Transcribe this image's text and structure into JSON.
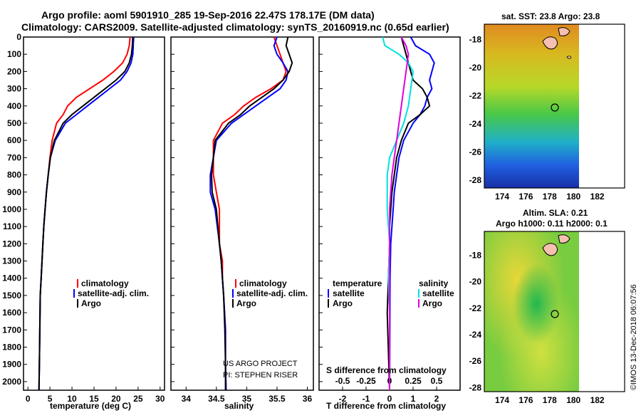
{
  "header": {
    "line1": "Argo profile: aoml 5901910_285 19-Sep-2016 22.47S 178.17E (DM data)",
    "line2": "Climatology: CARS2009. Satellite-adjusted climatology: synTS_20160919.nc (0.65d earlier)"
  },
  "credits": {
    "project": "US ARGO PROJECT",
    "pi": "PI: STEPHEN RISER"
  },
  "imos_stamp": "©IMOS 13-Dec-2018 06:07:56",
  "colors": {
    "climatology": "#ff0000",
    "satellite": "#0000ff",
    "argo": "#000000",
    "sat_salinity": "#00e0e0",
    "argo_salinity": "#e000e0"
  },
  "chart_data": [
    {
      "type": "line",
      "id": "temperature",
      "xlabel": "temperature (deg C)",
      "ylim": [
        2050,
        0
      ],
      "xlim": [
        -1,
        31
      ],
      "xticks": [
        "0",
        "5",
        "10",
        "15",
        "20",
        "25",
        "30"
      ],
      "yticks": [
        "0",
        "100",
        "200",
        "300",
        "400",
        "500",
        "600",
        "700",
        "800",
        "900",
        "1000",
        "1100",
        "1200",
        "1300",
        "1400",
        "1500",
        "1600",
        "1700",
        "1800",
        "1900",
        "2000"
      ],
      "legend": [
        "climatology",
        "satellite-adj. clim.",
        "Argo"
      ],
      "series": [
        {
          "name": "climatology",
          "color": "#ff0000",
          "x": [
            23.2,
            23.0,
            22.5,
            21.5,
            19.5,
            17.0,
            14.0,
            11.0,
            9.0,
            8.0,
            6.5,
            5.5,
            5.0,
            4.6,
            4.2,
            3.9,
            3.6,
            3.4,
            3.2,
            3.0,
            2.8,
            2.7,
            2.6,
            2.5
          ],
          "y": [
            0,
            50,
            100,
            150,
            200,
            250,
            300,
            350,
            400,
            450,
            500,
            600,
            700,
            800,
            900,
            1000,
            1100,
            1200,
            1300,
            1400,
            1500,
            1700,
            1900,
            2050
          ]
        },
        {
          "name": "satellite-adj. clim.",
          "color": "#0000ff",
          "x": [
            24.0,
            23.9,
            23.8,
            23.4,
            22.5,
            21.0,
            18.5,
            16.0,
            13.5,
            11.0,
            8.5,
            6.2,
            5.1,
            4.6,
            4.2,
            3.9,
            3.6,
            3.4,
            3.2,
            3.0,
            2.8,
            2.7,
            2.6,
            2.5
          ],
          "y": [
            0,
            50,
            100,
            150,
            200,
            250,
            300,
            350,
            400,
            450,
            500,
            600,
            700,
            800,
            900,
            1000,
            1100,
            1200,
            1300,
            1400,
            1500,
            1700,
            1900,
            2050
          ]
        },
        {
          "name": "Argo",
          "color": "#000000",
          "x": [
            23.8,
            23.7,
            23.5,
            23.0,
            22.0,
            20.0,
            17.5,
            15.0,
            12.5,
            10.0,
            8.0,
            6.0,
            5.1,
            4.6,
            4.2,
            3.9,
            3.6,
            3.4,
            3.2,
            3.0,
            2.8,
            2.7,
            2.6,
            2.5
          ],
          "y": [
            0,
            50,
            100,
            150,
            200,
            250,
            300,
            350,
            400,
            450,
            500,
            600,
            700,
            800,
            900,
            1000,
            1100,
            1200,
            1300,
            1400,
            1500,
            1700,
            1900,
            2050
          ]
        }
      ]
    },
    {
      "type": "line",
      "id": "salinity",
      "xlabel": "salinity",
      "ylim": [
        2050,
        0
      ],
      "xlim": [
        33.75,
        36.1
      ],
      "xticks": [
        "34",
        "34.5",
        "35",
        "35.5",
        "36"
      ],
      "legend": [
        "climatology",
        "satellite-adj. clim.",
        "Argo"
      ],
      "series": [
        {
          "name": "climatology",
          "color": "#ff0000",
          "x": [
            35.45,
            35.5,
            35.55,
            35.6,
            35.65,
            35.6,
            35.4,
            35.15,
            34.95,
            34.8,
            34.6,
            34.45,
            34.45,
            34.5,
            34.55,
            34.55,
            34.6,
            34.6,
            34.62,
            34.65,
            34.65,
            34.66
          ],
          "y": [
            0,
            50,
            100,
            150,
            200,
            250,
            300,
            350,
            400,
            450,
            500,
            600,
            800,
            900,
            1000,
            1200,
            1300,
            1400,
            1500,
            1700,
            1900,
            2050
          ]
        },
        {
          "name": "satellite-adj. clim.",
          "color": "#0000ff",
          "x": [
            35.5,
            35.45,
            35.5,
            35.6,
            35.68,
            35.65,
            35.55,
            35.35,
            35.15,
            34.95,
            34.75,
            34.5,
            34.4,
            34.4,
            34.48,
            34.55,
            34.58,
            34.6,
            34.62,
            34.65,
            34.65,
            34.66
          ],
          "y": [
            0,
            50,
            100,
            150,
            200,
            250,
            300,
            350,
            400,
            450,
            500,
            600,
            800,
            900,
            1000,
            1200,
            1300,
            1400,
            1500,
            1700,
            1900,
            2050
          ]
        },
        {
          "name": "Argo",
          "color": "#000000",
          "x": [
            35.68,
            35.65,
            35.7,
            35.75,
            35.7,
            35.6,
            35.45,
            35.25,
            35.05,
            34.9,
            34.7,
            34.48,
            34.42,
            34.43,
            34.5,
            34.55,
            34.58,
            34.6,
            34.62,
            34.64,
            34.65,
            34.65
          ],
          "y": [
            0,
            50,
            100,
            150,
            200,
            250,
            300,
            350,
            400,
            450,
            500,
            600,
            800,
            900,
            1000,
            1200,
            1300,
            1400,
            1500,
            1700,
            1900,
            2050
          ]
        }
      ]
    },
    {
      "type": "line",
      "id": "difference",
      "xlabel": "T difference from climatology",
      "xlabel_top": "S difference from climatology",
      "xlim": [
        -3,
        3
      ],
      "ylim": [
        2050,
        0
      ],
      "xticks": [
        "-2",
        "-1",
        "0",
        "1",
        "2"
      ],
      "xticks_top": [
        "-0.5",
        "-0.25",
        "0",
        "0.25",
        "0.5"
      ],
      "legend_left_title": "temperature",
      "legend_right_title": "salinity",
      "legend_left": [
        "satellite",
        "Argo"
      ],
      "legend_right": [
        "satellite",
        "Argo"
      ],
      "series": [
        {
          "name": "satellite",
          "color": "#0000ff",
          "x": [
            0.9,
            1.1,
            1.7,
            1.9,
            1.8,
            1.7,
            1.8,
            1.6,
            1.5,
            1.3,
            1.0,
            0.6,
            0.4,
            0.3,
            0.2,
            0.15,
            0.1,
            0.05,
            0.02,
            0.0
          ],
          "y": [
            0,
            50,
            100,
            150,
            200,
            250,
            300,
            350,
            400,
            450,
            500,
            600,
            700,
            800,
            900,
            1000,
            1100,
            1200,
            1400,
            2050
          ]
        },
        {
          "name": "Argo",
          "color": "#000000",
          "x": [
            0.5,
            0.6,
            0.7,
            0.8,
            0.9,
            1.0,
            1.4,
            1.6,
            1.7,
            1.3,
            0.8,
            0.5,
            0.3,
            0.2,
            0.1,
            0.05,
            0.0,
            0.0,
            -0.1,
            0.0
          ],
          "y": [
            0,
            50,
            100,
            150,
            200,
            250,
            300,
            350,
            400,
            450,
            500,
            600,
            700,
            800,
            900,
            1000,
            1100,
            1200,
            1600,
            2050
          ]
        },
        {
          "name": "satellite",
          "color": "#00e0e0",
          "x": [
            -0.3,
            -0.2,
            0.4,
            0.8,
            1.0,
            0.9,
            0.8,
            0.6,
            0.3,
            0.0,
            -0.1,
            -0.1,
            0.0,
            -0.05,
            0.0,
            0.0
          ],
          "y": [
            0,
            50,
            100,
            150,
            200,
            300,
            400,
            500,
            600,
            700,
            800,
            1000,
            1200,
            1400,
            1600,
            2050
          ]
        },
        {
          "name": "Argo",
          "color": "#e000e0",
          "x": [
            0.5,
            0.7,
            0.8,
            0.7,
            0.6,
            0.5,
            0.4,
            0.3,
            0.2,
            0.1,
            0.05,
            0.0,
            0.0
          ],
          "y": [
            0,
            50,
            100,
            200,
            300,
            400,
            500,
            600,
            700,
            800,
            900,
            1000,
            2050
          ]
        }
      ]
    }
  ],
  "maps": [
    {
      "title": "sat. SST: 23.8 Argo: 23.8",
      "xticks": [
        "174",
        "176",
        "178",
        "180",
        "182"
      ],
      "yticks": [
        "-18",
        "-20",
        "-22",
        "-24",
        "-26",
        "-28"
      ]
    },
    {
      "title": "Altim. SLA: 0.21",
      "subtitle": "Argo h1000: 0.11 h2000: 0.1",
      "xticks": [
        "174",
        "176",
        "178",
        "180",
        "182"
      ],
      "yticks": [
        "-18",
        "-20",
        "-22",
        "-24",
        "-26",
        "-28"
      ]
    }
  ]
}
